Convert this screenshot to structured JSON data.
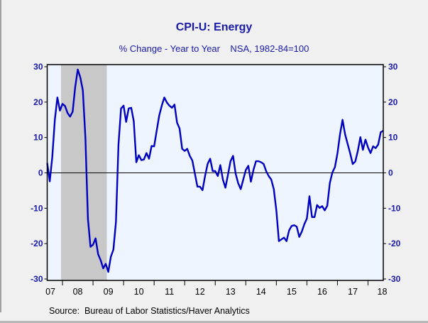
{
  "chart_data": {
    "type": "line",
    "title": "CPI-U: Energy",
    "subtitle": "% Change - Year to Year    NSA, 1982-84=100",
    "source": "Source:  Bureau of Labor Statistics/Haver Analytics",
    "xlabel": "",
    "ylabel": "",
    "frequency": "monthly",
    "start": "2007-07",
    "end": "2018-07",
    "ylim": [
      -30,
      30
    ],
    "yticks": [
      30,
      20,
      10,
      0,
      -10,
      -20,
      -30
    ],
    "yticks_right": [
      30,
      20,
      10,
      0,
      -10,
      -20,
      -30
    ],
    "xtick_labels": [
      "07",
      "08",
      "09",
      "10",
      "11",
      "12",
      "13",
      "14",
      "15",
      "16",
      "17",
      "18"
    ],
    "zero_line": true,
    "grid": false,
    "legend": "none",
    "recession_shading": [
      {
        "start": "2007-12",
        "end": "2009-06"
      }
    ],
    "colors": {
      "line": "#0000c0",
      "title": "#1a1aa8",
      "plot_background": "#eef5ff",
      "recession": "#c8c8c8",
      "page_background": "#f0f0f0"
    },
    "series": [
      {
        "name": "CPI-U: Energy % Change Y/Y",
        "values": [
          2.8,
          -2.4,
          4.5,
          15.0,
          21.3,
          17.6,
          19.5,
          18.9,
          16.9,
          15.9,
          17.3,
          24.3,
          29.2,
          27.0,
          23.3,
          10.0,
          -13.0,
          -20.9,
          -20.3,
          -18.5,
          -23.0,
          -24.7,
          -27.0,
          -25.7,
          -28.0,
          -23.7,
          -21.7,
          -13.9,
          8.0,
          18.2,
          19.0,
          14.4,
          18.2,
          18.4,
          14.6,
          3.0,
          5.0,
          3.6,
          3.8,
          5.6,
          4.0,
          7.6,
          7.5,
          11.9,
          16.2,
          19.0,
          21.3,
          19.9,
          19.0,
          18.4,
          19.3,
          14.2,
          12.5,
          6.8,
          6.2,
          6.8,
          4.8,
          3.5,
          -0.2,
          -3.9,
          -3.9,
          -4.9,
          -0.9,
          2.5,
          4.0,
          0.5,
          0.5,
          -0.9,
          2.2,
          -1.9,
          -4.2,
          -0.5,
          3.3,
          4.8,
          -0.2,
          -2.9,
          -4.6,
          -1.9,
          0.8,
          2.0,
          -2.5,
          0.8,
          3.3,
          3.3,
          3.0,
          2.5,
          0.5,
          -0.9,
          -1.9,
          -4.6,
          -10.6,
          -19.3,
          -18.8,
          -18.3,
          -19.3,
          -16.3,
          -15.0,
          -14.8,
          -15.2,
          -18.1,
          -16.6,
          -14.5,
          -12.9,
          -6.6,
          -12.5,
          -12.5,
          -9.1,
          -9.9,
          -9.4,
          -10.6,
          -9.3,
          -2.9,
          0.1,
          1.6,
          5.5,
          10.9,
          15.0,
          10.9,
          8.2,
          5.5,
          2.5,
          3.2,
          6.2,
          10.1,
          6.5,
          9.4,
          7.2,
          5.6,
          7.5,
          7.0,
          8.0,
          11.5,
          11.9
        ]
      }
    ]
  }
}
